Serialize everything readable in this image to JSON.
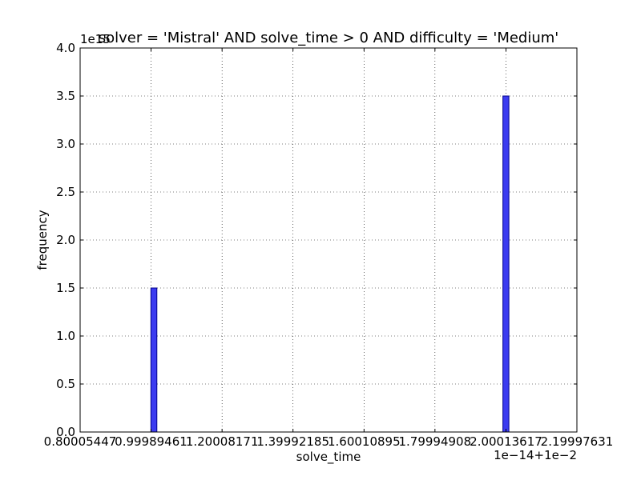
{
  "chart_data": {
    "type": "bar",
    "title": "solver = 'Mistral' AND solve_time > 0 AND difficulty = 'Medium'",
    "xlabel": "solve_time",
    "ylabel": "frequency",
    "x_offset_text": "1e−14+1e−2",
    "y_scale_text": "1e15",
    "x_tick_labels": [
      "0.80005447",
      "0.99989461",
      "1.20008171",
      "1.39992185",
      "1.60010895",
      "1.79994908",
      "2.00013617",
      "2.19997631"
    ],
    "x_ticks": [
      0.80005447,
      0.99989461,
      1.20008171,
      1.39992185,
      1.60010895,
      1.79994908,
      2.00013617,
      2.19997631
    ],
    "xlim": [
      0.80005447,
      2.19997631
    ],
    "y_tick_labels": [
      "0.0",
      "0.5",
      "1.0",
      "1.5",
      "2.0",
      "2.5",
      "3.0",
      "3.5",
      "4.0"
    ],
    "y_ticks": [
      0.0,
      0.5,
      1.0,
      1.5,
      2.0,
      2.5,
      3.0,
      3.5,
      4.0
    ],
    "ylim": [
      0,
      4.0
    ],
    "bars": [
      {
        "x": 0.9995,
        "width": 0.0168,
        "value": 1.5
      },
      {
        "x": 1.9915,
        "width": 0.0168,
        "value": 3.5
      }
    ],
    "grid": true,
    "colors": {
      "bar_fill": "#3b3bf0",
      "bar_edge": "#00008b"
    }
  }
}
